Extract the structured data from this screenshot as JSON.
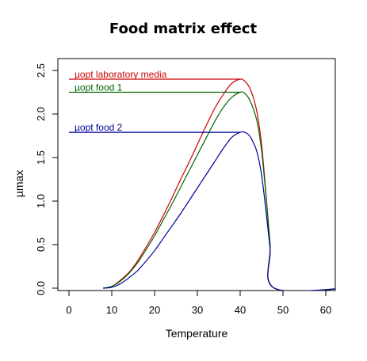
{
  "chart_data": {
    "type": "line",
    "title": "Food matrix effect",
    "xlabel": "Temperature",
    "ylabel": "µmax",
    "xlim": [
      0,
      60
    ],
    "ylim": [
      0,
      2.5
    ],
    "x_ticks": [
      0,
      10,
      20,
      30,
      40,
      50,
      60
    ],
    "y_ticks": [
      0.0,
      0.5,
      1.0,
      1.5,
      2.0,
      2.5
    ],
    "y_tick_labels": [
      "0.0",
      "0.5",
      "1.0",
      "1.5",
      "2.0",
      "2.5"
    ],
    "grid": false,
    "series": [
      {
        "name": "µopt laboratory media",
        "color": "#cc0000",
        "x": [
          8,
          10,
          12,
          14,
          16,
          18,
          20,
          22,
          24,
          26,
          28,
          30,
          32,
          34,
          36,
          38,
          40,
          41,
          42,
          43,
          44,
          45,
          46,
          47,
          48,
          65
        ],
        "y": [
          0.0,
          0.02,
          0.09,
          0.18,
          0.31,
          0.47,
          0.64,
          0.83,
          1.03,
          1.24,
          1.44,
          1.65,
          1.86,
          2.06,
          2.22,
          2.35,
          2.4,
          2.38,
          2.32,
          2.2,
          2.0,
          1.65,
          1.1,
          0.5,
          0.0,
          0.0
        ],
        "hline_y": 2.4
      },
      {
        "name": "µopt food 1",
        "color": "#006600",
        "x": [
          8,
          10,
          12,
          14,
          16,
          18,
          20,
          22,
          24,
          26,
          28,
          30,
          32,
          34,
          36,
          38,
          40,
          41,
          42,
          43,
          44,
          45,
          46,
          47,
          48,
          65
        ],
        "y": [
          0.0,
          0.02,
          0.08,
          0.17,
          0.29,
          0.44,
          0.6,
          0.78,
          0.96,
          1.15,
          1.34,
          1.53,
          1.72,
          1.91,
          2.07,
          2.19,
          2.25,
          2.24,
          2.18,
          2.07,
          1.9,
          1.58,
          1.08,
          0.5,
          0.0,
          0.0
        ],
        "hline_y": 2.25
      },
      {
        "name": "µopt food 2",
        "color": "#000099",
        "x": [
          8,
          10,
          12,
          14,
          16,
          18,
          20,
          22,
          24,
          26,
          28,
          30,
          32,
          34,
          36,
          38,
          40,
          41,
          42,
          43,
          44,
          45,
          46,
          47,
          48,
          65
        ],
        "y": [
          0.0,
          0.01,
          0.05,
          0.12,
          0.2,
          0.31,
          0.43,
          0.57,
          0.71,
          0.85,
          1.0,
          1.15,
          1.3,
          1.45,
          1.6,
          1.73,
          1.79,
          1.79,
          1.76,
          1.68,
          1.55,
          1.3,
          0.9,
          0.45,
          0.0,
          0.0
        ],
        "hline_y": 1.79
      }
    ]
  }
}
